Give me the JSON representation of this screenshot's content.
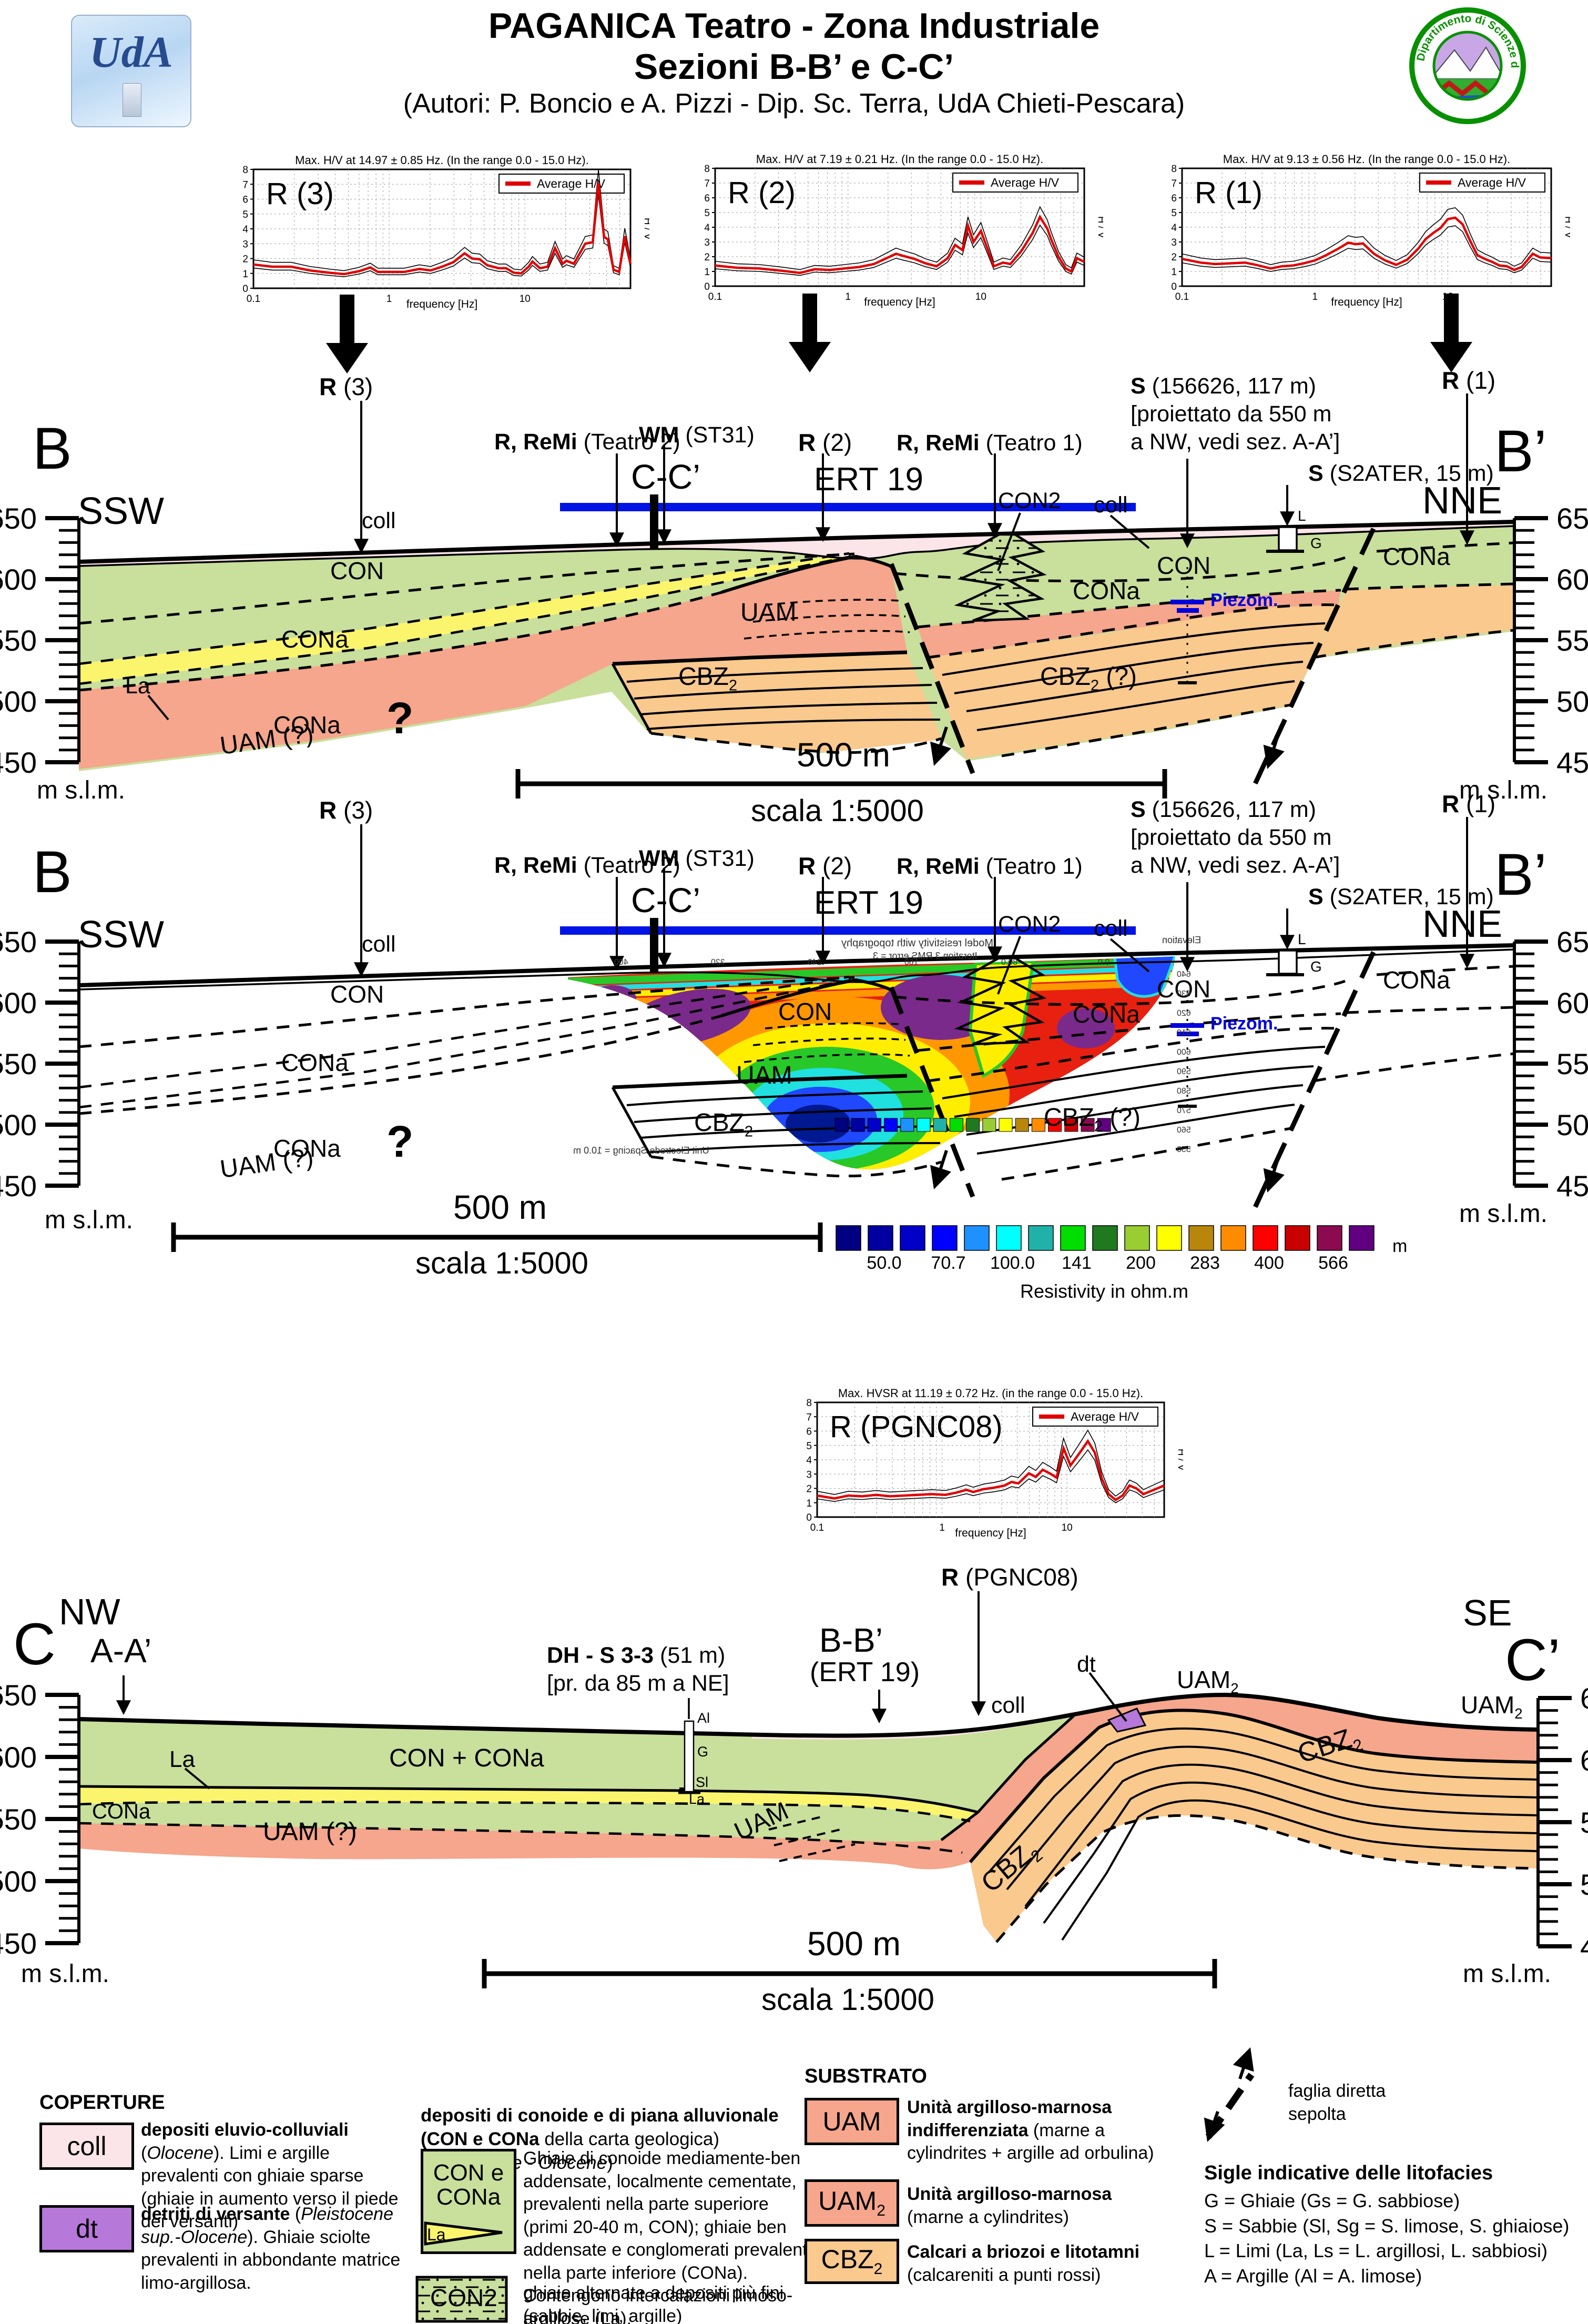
{
  "header": {
    "title_line1": "PAGANICA Teatro - Zona Industriale",
    "title_line2": "Sezioni B-B’ e C-C’",
    "authors": "(Autori: P. Boncio e A. Pizzi - Dip. Sc. Terra, UdA Chieti-Pescara)",
    "logo_left_text": "UdA",
    "logo_right_text": "Dipartimento di Scienze della Terra"
  },
  "charts": [
    {
      "name": "R (3)",
      "title": "Max. H/V at 14.97 ± 0.85 Hz. (In the range 0.0 - 15.0 Hz).",
      "legend": "Average H/V",
      "xlabel": "frequency [Hz]",
      "ylabel": "H / V",
      "xticks": [
        "0.1",
        "1",
        "10"
      ],
      "ymax": 8,
      "series": [
        [
          0.0,
          1.6
        ],
        [
          0.05,
          1.45
        ],
        [
          0.1,
          1.45
        ],
        [
          0.15,
          1.2
        ],
        [
          0.2,
          1.05
        ],
        [
          0.24,
          0.95
        ],
        [
          0.28,
          1.15
        ],
        [
          0.31,
          1.4
        ],
        [
          0.33,
          1.1
        ],
        [
          0.36,
          1.1
        ],
        [
          0.4,
          1.1
        ],
        [
          0.44,
          1.3
        ],
        [
          0.47,
          1.2
        ],
        [
          0.5,
          1.45
        ],
        [
          0.53,
          1.75
        ],
        [
          0.56,
          2.35
        ],
        [
          0.58,
          2.0
        ],
        [
          0.6,
          1.95
        ],
        [
          0.62,
          1.55
        ],
        [
          0.65,
          1.35
        ],
        [
          0.67,
          1.35
        ],
        [
          0.69,
          1.05
        ],
        [
          0.71,
          1.0
        ],
        [
          0.73,
          1.45
        ],
        [
          0.74,
          1.8
        ],
        [
          0.76,
          1.35
        ],
        [
          0.78,
          1.45
        ],
        [
          0.8,
          2.7
        ],
        [
          0.82,
          1.65
        ],
        [
          0.83,
          1.85
        ],
        [
          0.85,
          1.65
        ],
        [
          0.87,
          2.55
        ],
        [
          0.88,
          3.0
        ],
        [
          0.9,
          3.1
        ],
        [
          0.915,
          7.1
        ],
        [
          0.93,
          3.45
        ],
        [
          0.94,
          3.3
        ],
        [
          0.955,
          1.25
        ],
        [
          0.97,
          1.1
        ],
        [
          0.985,
          3.5
        ],
        [
          1.0,
          1.65
        ]
      ]
    },
    {
      "name": "R (2)",
      "title": "Max. H/V at 7.19 ± 0.21 Hz. (In the range 0.0 - 15.0 Hz).",
      "legend": "Average H/V",
      "xlabel": "frequency [Hz]",
      "ylabel": "H / V",
      "xticks": [
        "0.1",
        "1",
        "10"
      ],
      "ymax": 8,
      "series": [
        [
          0.0,
          1.4
        ],
        [
          0.06,
          1.25
        ],
        [
          0.12,
          1.2
        ],
        [
          0.18,
          1.05
        ],
        [
          0.23,
          0.9
        ],
        [
          0.27,
          1.15
        ],
        [
          0.31,
          1.1
        ],
        [
          0.35,
          1.2
        ],
        [
          0.39,
          1.3
        ],
        [
          0.43,
          1.5
        ],
        [
          0.46,
          1.85
        ],
        [
          0.49,
          2.2
        ],
        [
          0.51,
          2.05
        ],
        [
          0.54,
          1.85
        ],
        [
          0.57,
          1.55
        ],
        [
          0.6,
          1.35
        ],
        [
          0.63,
          1.9
        ],
        [
          0.65,
          2.8
        ],
        [
          0.67,
          2.45
        ],
        [
          0.685,
          4.1
        ],
        [
          0.7,
          3.0
        ],
        [
          0.72,
          3.75
        ],
        [
          0.74,
          2.4
        ],
        [
          0.755,
          1.35
        ],
        [
          0.78,
          1.6
        ],
        [
          0.8,
          1.5
        ],
        [
          0.83,
          2.4
        ],
        [
          0.86,
          3.6
        ],
        [
          0.88,
          4.7
        ],
        [
          0.9,
          3.9
        ],
        [
          0.91,
          3.2
        ],
        [
          0.93,
          2.0
        ],
        [
          0.95,
          1.2
        ],
        [
          0.965,
          1.0
        ],
        [
          0.98,
          1.9
        ],
        [
          1.0,
          1.65
        ]
      ]
    },
    {
      "name": "R (1)",
      "title": "Max. H/V at 9.13 ± 0.56 Hz. (In the range 0.0 - 15.0 Hz).",
      "legend": "Average H/V",
      "xlabel": "frequency [Hz]",
      "ylabel": "H / V",
      "xticks": [
        "0.1",
        "1",
        "10"
      ],
      "ymax": 8,
      "series": [
        [
          0.0,
          1.85
        ],
        [
          0.05,
          1.6
        ],
        [
          0.09,
          1.5
        ],
        [
          0.13,
          1.55
        ],
        [
          0.17,
          1.6
        ],
        [
          0.2,
          1.45
        ],
        [
          0.24,
          1.2
        ],
        [
          0.27,
          1.35
        ],
        [
          0.3,
          1.4
        ],
        [
          0.33,
          1.55
        ],
        [
          0.36,
          1.75
        ],
        [
          0.39,
          2.1
        ],
        [
          0.42,
          2.5
        ],
        [
          0.45,
          2.95
        ],
        [
          0.47,
          2.85
        ],
        [
          0.49,
          2.9
        ],
        [
          0.52,
          2.2
        ],
        [
          0.55,
          1.75
        ],
        [
          0.58,
          1.45
        ],
        [
          0.61,
          1.8
        ],
        [
          0.64,
          2.55
        ],
        [
          0.66,
          3.2
        ],
        [
          0.68,
          3.6
        ],
        [
          0.7,
          3.95
        ],
        [
          0.72,
          4.55
        ],
        [
          0.74,
          4.65
        ],
        [
          0.76,
          4.2
        ],
        [
          0.78,
          3.1
        ],
        [
          0.8,
          2.1
        ],
        [
          0.82,
          1.85
        ],
        [
          0.84,
          1.65
        ],
        [
          0.86,
          1.4
        ],
        [
          0.88,
          1.35
        ],
        [
          0.9,
          1.1
        ],
        [
          0.92,
          1.3
        ],
        [
          0.95,
          2.2
        ],
        [
          0.97,
          1.95
        ],
        [
          1.0,
          1.9
        ]
      ]
    },
    {
      "name": "R (PGNC08)",
      "title": "Max. HVSR at 11.19 ± 0.72 Hz. (in the range 0.0 - 15.0 Hz).",
      "legend": "Average H/V",
      "xlabel": "frequency [Hz]",
      "ylabel": "H / V",
      "xticks": [
        "0.1",
        "1",
        "10"
      ],
      "ymax": 8,
      "series": [
        [
          0.0,
          1.5
        ],
        [
          0.05,
          1.3
        ],
        [
          0.09,
          1.5
        ],
        [
          0.13,
          1.45
        ],
        [
          0.17,
          1.55
        ],
        [
          0.21,
          1.45
        ],
        [
          0.25,
          1.5
        ],
        [
          0.29,
          1.55
        ],
        [
          0.33,
          1.6
        ],
        [
          0.37,
          1.55
        ],
        [
          0.4,
          1.7
        ],
        [
          0.43,
          1.9
        ],
        [
          0.45,
          1.75
        ],
        [
          0.48,
          1.95
        ],
        [
          0.51,
          2.05
        ],
        [
          0.54,
          2.2
        ],
        [
          0.56,
          2.45
        ],
        [
          0.58,
          2.35
        ],
        [
          0.61,
          3.05
        ],
        [
          0.63,
          2.8
        ],
        [
          0.65,
          3.3
        ],
        [
          0.67,
          3.05
        ],
        [
          0.69,
          2.75
        ],
        [
          0.71,
          4.8
        ],
        [
          0.73,
          3.6
        ],
        [
          0.76,
          4.6
        ],
        [
          0.78,
          5.3
        ],
        [
          0.8,
          4.5
        ],
        [
          0.82,
          2.7
        ],
        [
          0.84,
          1.6
        ],
        [
          0.86,
          1.2
        ],
        [
          0.88,
          1.5
        ],
        [
          0.9,
          2.2
        ],
        [
          0.92,
          2.0
        ],
        [
          0.94,
          1.6
        ],
        [
          0.96,
          1.8
        ],
        [
          1.0,
          2.2
        ]
      ]
    }
  ],
  "sections": {
    "b1": {
      "end_left": "B",
      "dir_left": "SSW",
      "end_right": "B’",
      "dir_right": "NNE",
      "elevations": [
        "650",
        "600",
        "550",
        "500",
        "450"
      ],
      "msl": "m s.l.m.",
      "scalebar": "500 m",
      "scale_text": "scala 1:5000",
      "ann": {
        "r3_b": "R",
        "r3": " (3)",
        "r2_b": "R",
        "r2": " (2)",
        "r1_b": "R",
        "r1": " (1)",
        "remi2_b": "R, ReMi",
        "remi2": " (Teatro 2)",
        "wm_b": "WM",
        "wm": " (ST31)",
        "remi1_b": "R, ReMi",
        "remi1": " (Teatro 1)",
        "cc": "C-C’",
        "ert": "ERT 19",
        "s1_b": "S",
        "s1": " (156626, 117 m)",
        "s1_l2": "[proiettato da 550 m",
        "s1_l3": "a NW, vedi sez. A-A’]",
        "s2_b": "S",
        "s2": " (S2ATER, 15 m)",
        "con2": "CON2",
        "coll": "coll",
        "piezo": "Piezom.",
        "bh_l": "L",
        "bh_g": "G"
      },
      "units": {
        "con": "CON",
        "cona": "CONa",
        "la": "La",
        "uam_q": "UAM (?)",
        "q": "?",
        "uam": "UAM",
        "cbz": "CBZ",
        "sub2": "2",
        "cbz_q": " (?)"
      }
    },
    "b2": {
      "colorbar": {
        "values": [
          "50.0",
          "70.7",
          "100.0",
          "141",
          "200",
          "283",
          "400",
          "566"
        ],
        "title": "Resistivity in ohm.m",
        "unit": "m"
      },
      "ert": {
        "model": "Model resistivity with topography",
        "iter": "Iteration 3 RMS error = 3",
        "elev": "Elevation",
        "spacing": "Unit Electrode Spacing = 10.0 m",
        "xticks": [
          "400",
          "320",
          "240",
          "160",
          "80.0",
          "0.0"
        ],
        "elevticks": [
          "640",
          "630",
          "620",
          "610",
          "600",
          "590",
          "580",
          "570",
          "560",
          "550"
        ]
      }
    },
    "c": {
      "end_left": "C",
      "dir_left": "NW",
      "end_right": "C’",
      "dir_right": "SE",
      "elevations": [
        "650",
        "600",
        "550",
        "500",
        "450"
      ],
      "msl": "m s.l.m.",
      "scalebar": "500 m",
      "scale_text": "scala 1:5000",
      "ann": {
        "aa": "A-A’",
        "dh_b": "DH - S 3-3",
        "dh": " (51 m)",
        "dh_l2": "[pr. da 85 m a NE]",
        "rp_b": "R",
        "rp": " (PGNC08)",
        "bb": "B-B’",
        "bb2": "(ERT 19)",
        "dt": "dt",
        "coll": "coll",
        "al": "Al",
        "g": "G",
        "sl": "Sl",
        "la": "La"
      },
      "units": {
        "concona": "CON + CONa",
        "la": "La",
        "cona": "CONa",
        "uam_q": "UAM (?)",
        "uam": "UAM",
        "uam2_b": "UAM",
        "cbz": "CBZ",
        "sub2": "2"
      }
    }
  },
  "legend": {
    "coperture": "COPERTURE",
    "substrato": "SUBSTRATO",
    "coll_key": "coll",
    "dt_key": "dt",
    "coll_desc": [
      {
        "t": "depositi eluvio-colluviali",
        "s": "b"
      },
      {
        "t": " (",
        "s": "n"
      },
      {
        "t": "Olocene",
        "s": "i"
      },
      {
        "t": "). Limi e argille prevalenti con ghiaie sparse (ghiaie in aumento verso il piede dei versanti)",
        "s": "n"
      }
    ],
    "dt_desc": [
      {
        "t": "detriti di versante",
        "s": "b"
      },
      {
        "t": " (",
        "s": "n"
      },
      {
        "t": "Pleistocene sup.-Olocene",
        "s": "i"
      },
      {
        "t": "). Ghiaie sciolte prevalenti in abbondante matrice limo-argillosa.",
        "s": "n"
      }
    ],
    "conoide_heading": [
      {
        "t": "depositi di conoide e di piana alluvionale (CON e CONa",
        "s": "b"
      },
      {
        "t": " della carta geologica) (",
        "s": "n"
      },
      {
        "t": "Pleistocene - Olocene",
        "s": "i"
      },
      {
        "t": ")",
        "s": "n"
      }
    ],
    "concona_key1": "CON e",
    "concona_key2": "CONa",
    "concona_la": "La",
    "concona_desc": [
      {
        "t": "Ghiaie di conoide mediamente-ben addensate, localmente cementate, prevalenti nella parte superiore (primi 20-40 m, CON); ghiaie ben addensate e conglomerati prevalenti nella parte inferiore (CONa). Contengono intercalazioni limoso-argillose (La).",
        "s": "n"
      }
    ],
    "con2_key": "CON2",
    "con2_desc": [
      {
        "t": "ghiaie alternate a depositi più fini (sabbie, limi, argille)",
        "s": "n"
      }
    ],
    "uam_key": "UAM",
    "uam2_key": "UAM",
    "cbz_key": "CBZ",
    "sub2": "2",
    "uam_desc": [
      {
        "t": "Unità argilloso-marnosa indifferenziata",
        "s": "b"
      },
      {
        "t": " (marne a cylindrites + argille ad orbulina)",
        "s": "n"
      }
    ],
    "uam2_desc": [
      {
        "t": "Unità argilloso-marnosa",
        "s": "b"
      },
      {
        "t": " (marne a cylindrites)",
        "s": "n"
      }
    ],
    "cbz2_desc": [
      {
        "t": "Calcari a briozoi e litotamni",
        "s": "b"
      },
      {
        "t": " (calcareniti a punti rossi)",
        "s": "n"
      }
    ],
    "fault_l1": "faglia diretta",
    "fault_l2": "sepolta",
    "sigle_heading": "Sigle indicative delle litofacies",
    "sigle_lines": [
      "G = Ghiaie (Gs = G. sabbiose)",
      "S = Sabbie (Sl, Sg = S. limose, S. ghiaiose)",
      "L = Limi (La, Ls = L. argillosi, L. sabbiosi)",
      "A = Argille (Al = A. limose)"
    ]
  },
  "colors": {
    "con": "#c9df9c",
    "coll": "#fbe5e8",
    "uam": "#f5a68c",
    "cbz": "#f9c98e",
    "la": "#fbf56e",
    "dt": "#b678d9",
    "ert_bar": "#0014e6",
    "piezo": "#0000dd",
    "resistivity_scale": [
      "#000080",
      "#0000a0",
      "#0000c8",
      "#0000ff",
      "#1e90ff",
      "#00ffff",
      "#20b2aa",
      "#00dd00",
      "#1f7a1f",
      "#9acd32",
      "#ffff00",
      "#b8860b",
      "#ff8c00",
      "#ff0000",
      "#c80000",
      "#8b0a50",
      "#600080"
    ]
  }
}
